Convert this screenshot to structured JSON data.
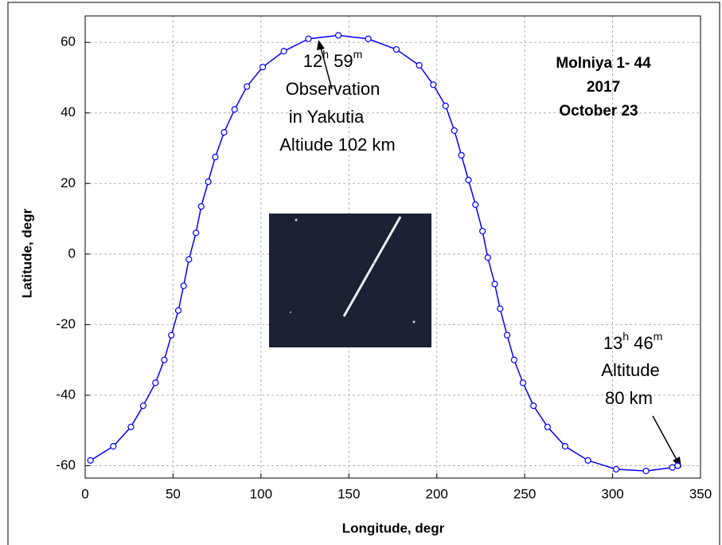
{
  "chart_data": {
    "type": "line",
    "title_lines": [
      "Molniya 1- 44",
      "2017",
      "October 23"
    ],
    "x_label": "Longitude, degr",
    "y_label": "Latitude, degr",
    "xlim": [
      0,
      350
    ],
    "ylim": [
      -63.5,
      67.5
    ],
    "xticks": [
      0,
      50,
      100,
      150,
      200,
      250,
      300,
      350
    ],
    "yticks": [
      -60,
      -40,
      -20,
      0,
      20,
      40,
      60
    ],
    "grid": true,
    "series": [
      {
        "color": "#0000ff",
        "x": [
          3,
          16,
          26,
          33,
          40,
          45,
          49,
          53,
          56,
          59,
          63,
          66,
          70,
          74,
          79,
          85,
          92,
          101,
          113,
          127,
          144,
          161,
          177,
          190,
          198,
          205,
          210,
          214,
          218,
          222,
          226,
          229,
          233,
          236,
          240,
          244,
          249,
          255,
          263,
          273,
          286,
          302,
          319,
          334,
          337
        ],
        "values": [
          -58.5,
          -54.5,
          -49,
          -43,
          -36.5,
          -30,
          -23,
          -16,
          -9,
          -1.5,
          6,
          13.5,
          20.5,
          27.5,
          34.5,
          41,
          47.5,
          53,
          57.5,
          61,
          62,
          61,
          58,
          53.5,
          48,
          42,
          35,
          28,
          21,
          14,
          6.5,
          -1,
          -8.5,
          -15.5,
          -23,
          -30,
          -36.5,
          -43,
          -49,
          -54.5,
          -58.5,
          -61,
          -61.5,
          -60.5,
          -60
        ]
      }
    ],
    "annotations": [
      {
        "parts": [
          "12",
          "h",
          " 59",
          "m"
        ]
      },
      {
        "parts": [
          "Observation"
        ]
      },
      {
        "parts": [
          "in Yakutia"
        ]
      },
      {
        "parts": [
          "Altiude 102 km"
        ]
      },
      {
        "parts": [
          "13",
          "h",
          " 46",
          "m"
        ]
      },
      {
        "parts": [
          "Altitude"
        ]
      },
      {
        "parts": [
          "80 km"
        ]
      }
    ]
  }
}
